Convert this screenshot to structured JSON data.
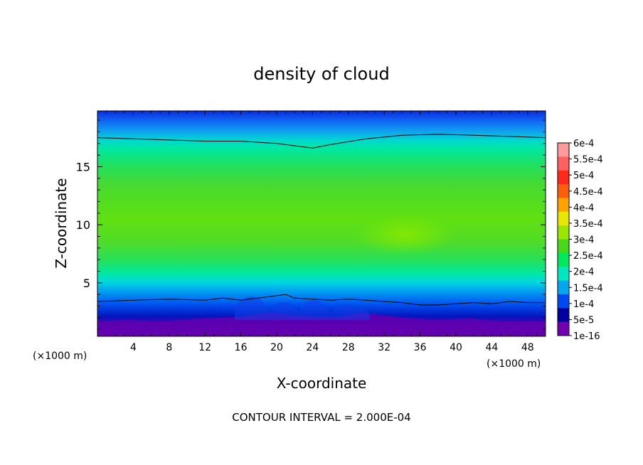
{
  "chart_data": {
    "type": "heatmap",
    "title": "density of cloud",
    "xlabel": "X-coordinate",
    "ylabel": "Z-coordinate",
    "x_unit": "(×1000 m)",
    "y_unit": "(×1000 m)",
    "xlim": [
      0,
      50
    ],
    "ylim": [
      0.4,
      19.8
    ],
    "x_ticks": [
      4,
      8,
      12,
      16,
      20,
      24,
      28,
      32,
      36,
      40,
      44,
      48
    ],
    "y_ticks": [
      5,
      10,
      15
    ],
    "colorbar": {
      "labels": [
        "6e-4",
        "5.5e-4",
        "5e-4",
        "4.5e-4",
        "4e-4",
        "3.5e-4",
        "3e-4",
        "2.5e-4",
        "2e-4",
        "1.5e-4",
        "1e-4",
        "5e-5",
        "1e-16"
      ],
      "colors": [
        "#ff9b9b",
        "#ff6060",
        "#ff2a1c",
        "#ff5e0a",
        "#ffa300",
        "#e6e600",
        "#9be600",
        "#48d81a",
        "#00e85c",
        "#00e8c0",
        "#00a8f0",
        "#0049f0",
        "#0000a0",
        "#7300b0"
      ]
    },
    "contour_lines": [
      {
        "x": [
          0,
          4,
          8,
          12,
          16,
          20,
          22,
          24,
          26,
          30,
          34,
          38,
          42,
          46,
          50
        ],
        "y": [
          17.5,
          17.4,
          17.3,
          17.2,
          17.2,
          17.0,
          16.8,
          16.6,
          16.9,
          17.4,
          17.7,
          17.8,
          17.7,
          17.6,
          17.5
        ]
      },
      {
        "x": [
          0,
          4,
          8,
          12,
          14,
          16,
          18,
          20,
          21,
          22,
          24,
          26,
          28,
          30,
          32,
          34,
          36,
          38,
          40,
          42,
          44,
          46,
          48,
          50
        ],
        "y": [
          3.4,
          3.5,
          3.6,
          3.5,
          3.7,
          3.5,
          3.7,
          3.9,
          4.0,
          3.7,
          3.6,
          3.5,
          3.6,
          3.5,
          3.4,
          3.3,
          3.1,
          3.1,
          3.2,
          3.3,
          3.2,
          3.4,
          3.3,
          3.3
        ]
      }
    ],
    "annotation": "CONTOUR INTERVAL = 2.000E-04"
  }
}
